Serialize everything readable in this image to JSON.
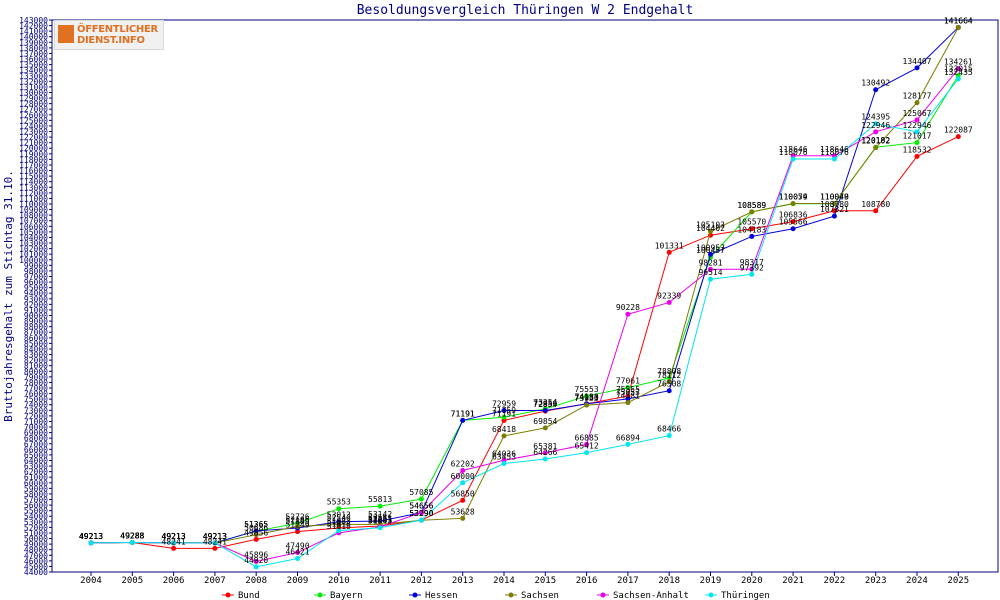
{
  "logo": {
    "line1": "ÖFFENTLICHER",
    "line2": "DIENST.INFO"
  },
  "chart_data": {
    "type": "line",
    "title": "Besoldungsvergleich Thüringen W 2 Endgehalt",
    "xlabel": "",
    "ylabel": "Bruttojahresgehalt zum Stichtag 31.10.",
    "ylim": [
      44000,
      143000
    ],
    "ytick_step": 1000,
    "grid": false,
    "legend_position": "bottom",
    "categories": [
      "2004",
      "2005",
      "2006",
      "2007",
      "2008",
      "2009",
      "2010",
      "2011",
      "2012",
      "2013",
      "2014",
      "2015",
      "2016",
      "2017",
      "2018",
      "2019",
      "2020",
      "2021",
      "2022",
      "2023",
      "2024",
      "2025"
    ],
    "series": [
      {
        "name": "Bund",
        "color": "#ff0000",
        "values": [
          49213,
          49288,
          48241,
          48241,
          49856,
          51249,
          51883,
          52251,
          53290,
          56850,
          71191,
          72854,
          74183,
          75555,
          101331,
          104402,
          105570,
          106836,
          108780,
          108780,
          118532,
          122087
        ]
      },
      {
        "name": "Bayern",
        "color": "#00ee00",
        "values": [
          49213,
          49288,
          49213,
          49213,
          51365,
          52726,
          55353,
          55813,
          57085,
          71191,
          71759,
          73254,
          75553,
          77061,
          78808,
          100457,
          108589,
          110054,
          110048,
          120182,
          121017,
          133015
        ]
      },
      {
        "name": "Hessen",
        "color": "#0000dd",
        "values": [
          49213,
          49288,
          49213,
          49213,
          51365,
          51889,
          53013,
          53142,
          54656,
          71191,
          72959,
          72959,
          74150,
          75053,
          76508,
          100957,
          104183,
          105566,
          107821,
          130492,
          134407,
          141664
        ]
      },
      {
        "name": "Sachsen",
        "color": "#7d7d00",
        "values": [
          49213,
          49288,
          49213,
          49213,
          50686,
          52186,
          52546,
          52551,
          53290,
          53628,
          68418,
          69854,
          73933,
          74381,
          78112,
          105103,
          108589,
          110079,
          110079,
          120102,
          128177,
          141664
        ]
      },
      {
        "name": "Sachsen-Anhalt",
        "color": "#ee00ee",
        "values": [
          49213,
          49288,
          49213,
          49213,
          45896,
          47490,
          51018,
          52093,
          54656,
          62202,
          64036,
          65381,
          66885,
          90228,
          92339,
          98281,
          98317,
          118646,
          118646,
          122946,
          125067,
          134261
        ]
      },
      {
        "name": "Thüringen",
        "color": "#00e6ee",
        "values": [
          49213,
          49288,
          49213,
          49213,
          44920,
          46421,
          51418,
          51943,
          53290,
          60000,
          63453,
          64266,
          65412,
          66894,
          68466,
          96514,
          97392,
          118076,
          118076,
          124395,
          122946,
          132435
        ]
      }
    ]
  }
}
